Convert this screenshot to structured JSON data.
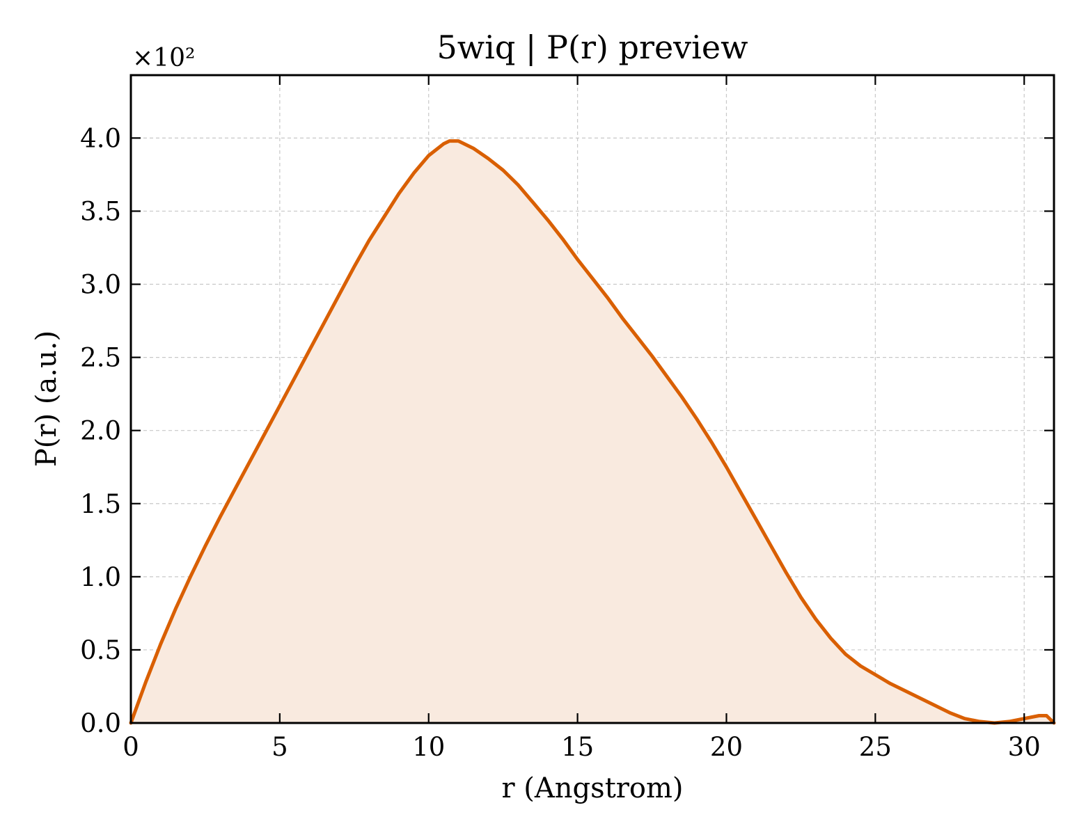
{
  "chart_data": {
    "type": "area",
    "title": "5wiq | P(r) preview",
    "xlabel": "r (Angstrom)",
    "ylabel": "P(r) (a.u.)",
    "y_multiplier": "×10²",
    "xlim": [
      0,
      31
    ],
    "ylim": [
      0,
      4.43
    ],
    "xticks": [
      0,
      5,
      10,
      15,
      20,
      25,
      30
    ],
    "xtick_labels": [
      "0",
      "5",
      "10",
      "15",
      "20",
      "25",
      "30"
    ],
    "yticks": [
      0.0,
      0.5,
      1.0,
      1.5,
      2.0,
      2.5,
      3.0,
      3.5,
      4.0
    ],
    "ytick_labels": [
      "0.0",
      "0.5",
      "1.0",
      "1.5",
      "2.0",
      "2.5",
      "3.0",
      "3.5",
      "4.0"
    ],
    "grid": true,
    "ticks_direction": "in",
    "colors": {
      "line": "#d95f02",
      "fill": "#f9eadf"
    },
    "series": [
      {
        "x": [
          0,
          0.5,
          1,
          1.5,
          2,
          2.5,
          3,
          3.5,
          4,
          4.5,
          5,
          5.5,
          6,
          6.5,
          7,
          7.5,
          8,
          8.5,
          9,
          9.5,
          10,
          10.5,
          10.7,
          11,
          11.5,
          12,
          12.5,
          13,
          13.5,
          14,
          14.5,
          15,
          15.5,
          16,
          16.5,
          17,
          17.5,
          18,
          18.5,
          19,
          19.5,
          20,
          20.5,
          21,
          21.5,
          22,
          22.5,
          23,
          23.5,
          24,
          24.5,
          25,
          25.5,
          26,
          26.5,
          27,
          27.5,
          28,
          28.5,
          29,
          29.5,
          30,
          30.5,
          30.75,
          31
        ],
        "values": [
          0.0,
          0.28,
          0.54,
          0.78,
          1.0,
          1.21,
          1.41,
          1.6,
          1.79,
          1.98,
          2.17,
          2.36,
          2.55,
          2.74,
          2.93,
          3.12,
          3.3,
          3.46,
          3.62,
          3.76,
          3.88,
          3.96,
          3.98,
          3.98,
          3.93,
          3.86,
          3.78,
          3.68,
          3.56,
          3.44,
          3.31,
          3.17,
          3.04,
          2.91,
          2.77,
          2.64,
          2.51,
          2.37,
          2.23,
          2.08,
          1.92,
          1.75,
          1.57,
          1.39,
          1.21,
          1.03,
          0.86,
          0.71,
          0.58,
          0.47,
          0.39,
          0.33,
          0.27,
          0.22,
          0.17,
          0.12,
          0.07,
          0.03,
          0.01,
          0.0,
          0.01,
          0.03,
          0.05,
          0.05,
          0.0
        ]
      }
    ]
  }
}
